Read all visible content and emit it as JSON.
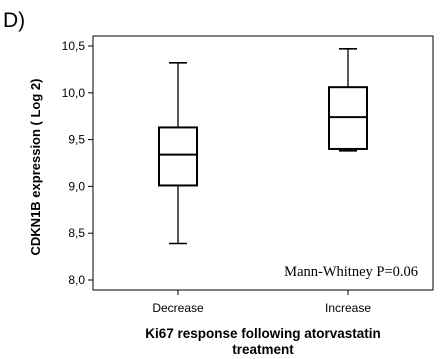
{
  "panel_label": "D)",
  "chart_data": {
    "type": "box",
    "title": "",
    "ylabel": "CDKN1B expression ( Log 2)",
    "xlabel_lines": [
      "Ki67 response following atorvastatin",
      "treatment"
    ],
    "ylim": [
      7.9,
      10.6
    ],
    "yticks": [
      8.0,
      8.5,
      9.0,
      9.5,
      10.0,
      10.5
    ],
    "ytick_labels": [
      "8,0",
      "8,5",
      "9,0",
      "9,5",
      "10,0",
      "10,5"
    ],
    "categories": [
      "Decrease",
      "Increase"
    ],
    "boxes": [
      {
        "category": "Decrease",
        "whisker_low": 8.39,
        "q1": 9.01,
        "median": 9.34,
        "q3": 9.63,
        "whisker_high": 10.32
      },
      {
        "category": "Increase",
        "whisker_low": 9.38,
        "q1": 9.4,
        "median": 9.74,
        "q3": 10.06,
        "whisker_high": 10.47
      }
    ],
    "annotation": "Mann-Whitney P=0.06",
    "grid": false
  }
}
